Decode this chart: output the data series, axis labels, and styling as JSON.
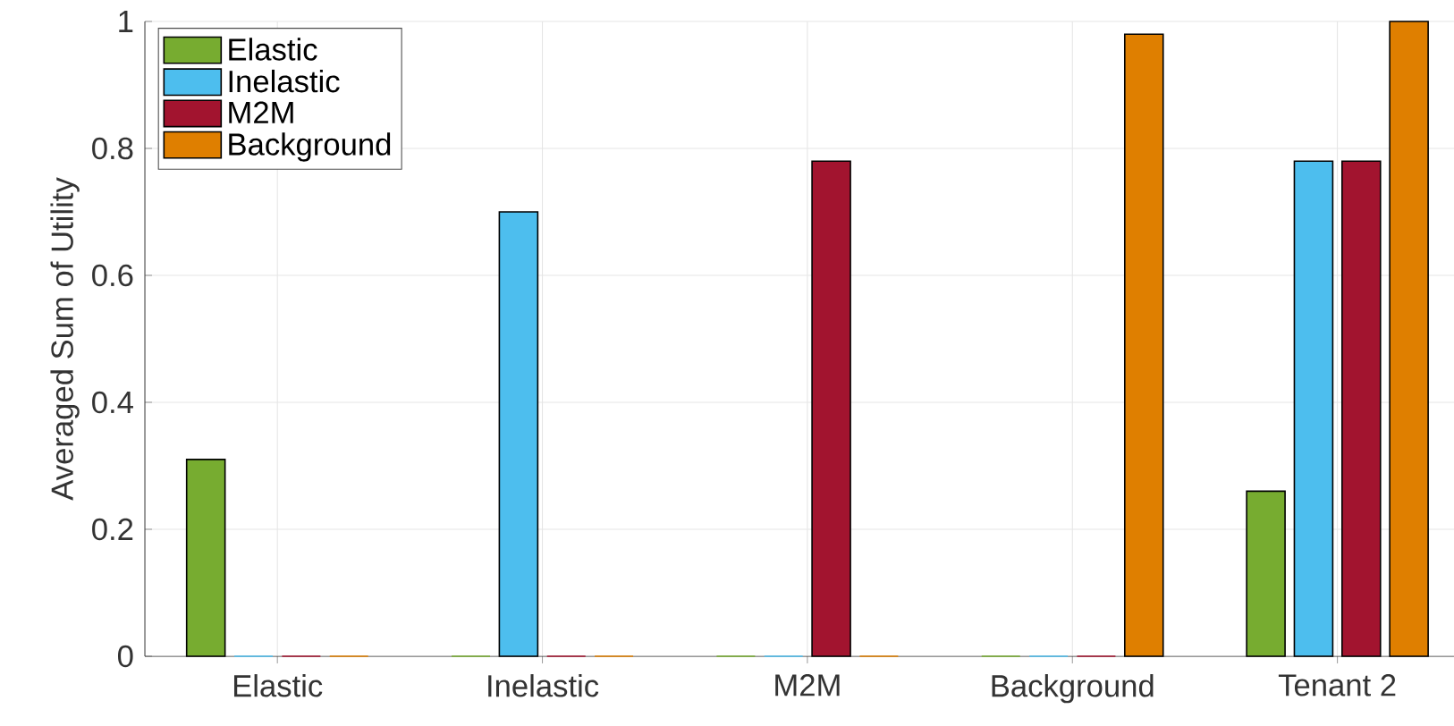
{
  "chart_data": {
    "type": "bar",
    "ylabel": "Averaged Sum of Utility",
    "categories": [
      "Elastic",
      "Inelastic",
      "M2M",
      "Background",
      "Tenant 2"
    ],
    "series": [
      {
        "name": "Elastic",
        "color": "#77ac30",
        "values": [
          0.31,
          0,
          0,
          0,
          0.26
        ]
      },
      {
        "name": "Inelastic",
        "color": "#4dbeee",
        "values": [
          0,
          0.7,
          0,
          0,
          0.78
        ]
      },
      {
        "name": "M2M",
        "color": "#a2142f",
        "values": [
          0,
          0,
          0.78,
          0,
          0.78
        ]
      },
      {
        "name": "Background",
        "color": "#df7f00",
        "values": [
          0,
          0,
          0,
          0.98,
          1.0
        ]
      }
    ],
    "ylim": [
      0,
      1
    ],
    "yticks": [
      0,
      0.2,
      0.4,
      0.6,
      0.8,
      1
    ],
    "grid": true,
    "legend": "top left"
  }
}
